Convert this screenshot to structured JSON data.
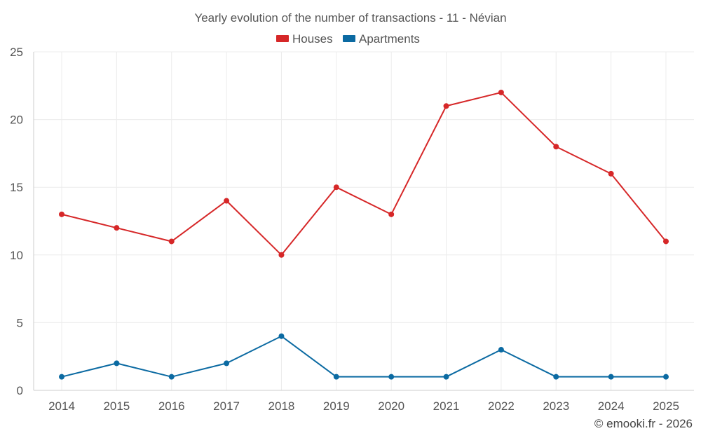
{
  "chart_data": {
    "type": "line",
    "title": "Yearly evolution of the number of transactions - 11 - Névian",
    "xlabel": "",
    "ylabel": "",
    "categories": [
      "2014",
      "2015",
      "2016",
      "2017",
      "2018",
      "2019",
      "2020",
      "2021",
      "2022",
      "2023",
      "2024",
      "2025"
    ],
    "ylim": [
      0,
      25
    ],
    "yticks": [
      0,
      5,
      10,
      15,
      20,
      25
    ],
    "grid": true,
    "legend_position": "top-center",
    "series": [
      {
        "name": "Houses",
        "color": "#d62728",
        "values": [
          13,
          12,
          11,
          14,
          10,
          15,
          13,
          21,
          22,
          18,
          16,
          11
        ]
      },
      {
        "name": "Apartments",
        "color": "#0b6aa2",
        "values": [
          1,
          2,
          1,
          2,
          4,
          1,
          1,
          1,
          3,
          1,
          1,
          1
        ]
      }
    ],
    "credit": "© emooki.fr - 2026"
  }
}
